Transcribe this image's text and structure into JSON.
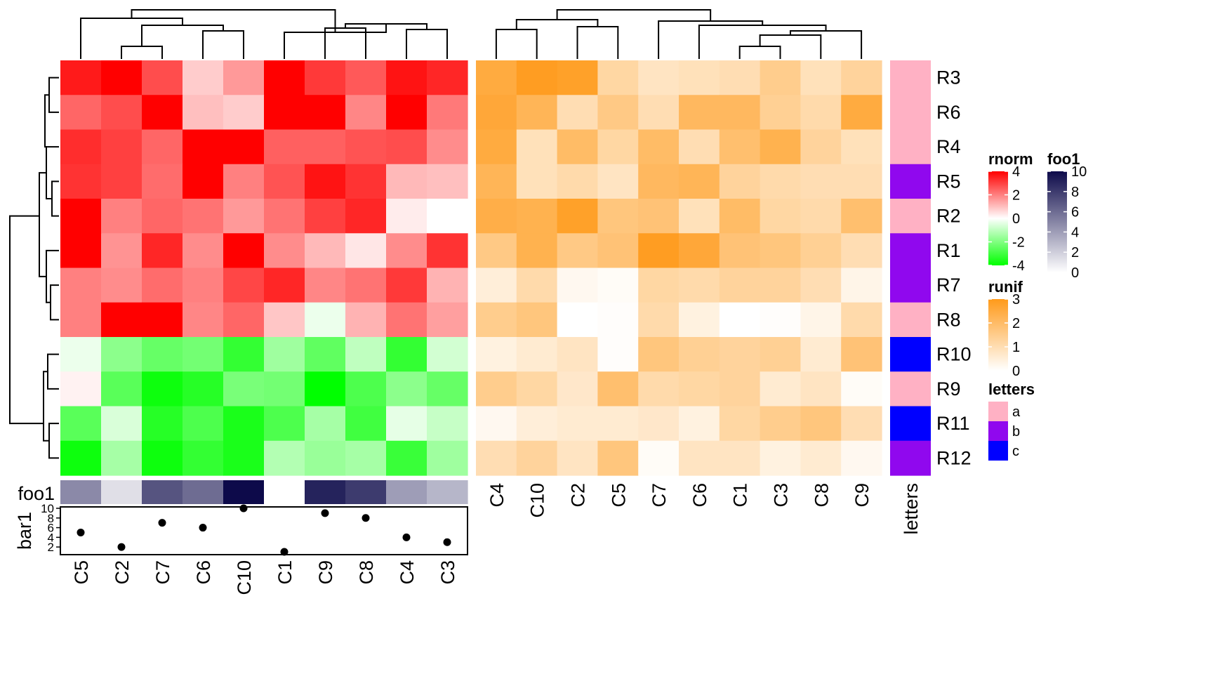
{
  "chart_data": {
    "type": "heatmap",
    "left_heatmap": {
      "name": "rnorm",
      "col_order": [
        "C5",
        "C2",
        "C7",
        "C6",
        "C10",
        "C1",
        "C9",
        "C8",
        "C4",
        "C3"
      ],
      "row_order": [
        "R3",
        "R6",
        "R4",
        "R5",
        "R2",
        "R1",
        "R7",
        "R8",
        "R10",
        "R9",
        "R11",
        "R12"
      ],
      "values": [
        [
          3.6,
          4.0,
          2.8,
          0.8,
          1.6,
          4.0,
          3.1,
          2.6,
          3.7,
          3.4
        ],
        [
          2.4,
          2.8,
          4.0,
          1.0,
          0.8,
          4.0,
          4.0,
          1.9,
          4.0,
          2.1
        ],
        [
          3.3,
          3.0,
          2.4,
          4.0,
          4.0,
          2.5,
          2.5,
          2.7,
          2.8,
          1.8
        ],
        [
          3.2,
          3.0,
          2.3,
          4.0,
          2.0,
          2.7,
          3.7,
          3.2,
          1.1,
          1.0
        ],
        [
          4.0,
          2.0,
          2.4,
          2.2,
          1.6,
          2.2,
          3.0,
          3.4,
          0.3,
          0.0
        ],
        [
          4.0,
          1.7,
          3.4,
          1.8,
          4.0,
          1.8,
          1.1,
          0.4,
          1.8,
          3.2
        ],
        [
          2.0,
          1.8,
          2.3,
          2.0,
          2.9,
          3.4,
          1.9,
          2.2,
          3.1,
          1.2
        ],
        [
          2.0,
          4.0,
          4.0,
          1.9,
          2.4,
          0.9,
          -0.3,
          1.2,
          2.2,
          1.5
        ],
        [
          -0.3,
          -1.8,
          -2.4,
          -2.2,
          -3.2,
          -1.5,
          -2.5,
          -1.0,
          -3.2,
          -0.7
        ],
        [
          0.2,
          -2.6,
          -3.8,
          -3.4,
          -2.1,
          -2.2,
          -4.0,
          -2.8,
          -1.8,
          -2.4
        ],
        [
          -2.6,
          -0.6,
          -3.4,
          -2.8,
          -3.6,
          -2.8,
          -1.4,
          -3.0,
          -0.4,
          -0.9
        ],
        [
          -3.8,
          -1.4,
          -3.8,
          -3.2,
          -3.6,
          -1.2,
          -1.6,
          -1.4,
          -3.1,
          -1.5
        ]
      ],
      "foo1": [
        4.8,
        1.3,
        7.0,
        6.0,
        10.0,
        0.0,
        9.0,
        8.0,
        4.0,
        3.0
      ],
      "bar1": {
        "name": "bar1",
        "ticks": [
          "10",
          "8",
          "6",
          "4",
          "2"
        ],
        "values": [
          5,
          2,
          7,
          6,
          10,
          1,
          9,
          8,
          4,
          3
        ],
        "ylim": [
          1,
          10
        ]
      }
    },
    "right_heatmap": {
      "name": "runif",
      "col_order": [
        "C4",
        "C10",
        "C2",
        "C5",
        "C7",
        "C6",
        "C1",
        "C3",
        "C8",
        "C9"
      ],
      "values": [
        [
          2.5,
          2.9,
          2.8,
          1.2,
          0.8,
          0.9,
          1.0,
          1.5,
          0.9,
          1.3
        ],
        [
          2.6,
          2.2,
          1.0,
          1.6,
          1.0,
          2.1,
          2.1,
          1.4,
          1.1,
          2.5
        ],
        [
          2.5,
          0.9,
          2.0,
          1.2,
          2.0,
          1.0,
          1.9,
          2.3,
          1.3,
          0.9
        ],
        [
          2.2,
          0.9,
          1.1,
          0.8,
          2.1,
          2.2,
          1.3,
          1.1,
          1.0,
          1.0
        ],
        [
          2.4,
          2.3,
          2.8,
          1.7,
          1.8,
          0.9,
          2.0,
          1.2,
          1.1,
          1.9
        ],
        [
          1.6,
          2.3,
          1.6,
          1.8,
          2.9,
          2.6,
          1.8,
          1.7,
          1.4,
          1.0
        ],
        [
          0.5,
          1.1,
          0.2,
          0.1,
          1.2,
          1.1,
          1.3,
          1.3,
          1.0,
          0.3
        ],
        [
          1.5,
          1.7,
          0.0,
          0.05,
          1.1,
          0.4,
          0.0,
          0.05,
          0.3,
          1.1
        ],
        [
          0.4,
          0.6,
          0.8,
          0.05,
          1.7,
          1.4,
          1.3,
          1.4,
          0.6,
          1.8
        ],
        [
          1.5,
          1.2,
          0.7,
          1.9,
          1.1,
          1.2,
          1.3,
          0.6,
          0.8,
          0.1
        ],
        [
          0.2,
          0.5,
          0.6,
          0.6,
          0.7,
          0.4,
          1.2,
          1.5,
          1.7,
          1.0
        ],
        [
          1.0,
          1.3,
          0.8,
          1.7,
          0.1,
          0.8,
          0.8,
          0.4,
          0.6,
          0.2
        ]
      ]
    },
    "letters": {
      "name": "letters",
      "values": [
        "a",
        "a",
        "a",
        "b",
        "a",
        "b",
        "b",
        "a",
        "c",
        "a",
        "c",
        "b"
      ]
    },
    "legends": {
      "rnorm": {
        "title": "rnorm",
        "ticks": [
          "4",
          "2",
          "0",
          "-2",
          "-4"
        ],
        "colors": [
          "#ff0000",
          "#ffffff",
          "#00ff00"
        ]
      },
      "runif": {
        "title": "runif",
        "ticks": [
          "3",
          "2",
          "1",
          "0"
        ],
        "colors": [
          "#ff9a1a",
          "#ffffff"
        ]
      },
      "foo1": {
        "title": "foo1",
        "ticks": [
          "10",
          "8",
          "6",
          "4",
          "2",
          "0"
        ],
        "colors": [
          "#0d0a4a",
          "#ffffff"
        ]
      },
      "letters": {
        "title": "letters",
        "items": [
          {
            "label": "a",
            "color": "#ffb1c4"
          },
          {
            "label": "b",
            "color": "#9008ee"
          },
          {
            "label": "c",
            "color": "#0000ff"
          }
        ]
      }
    },
    "labels": {
      "foo1_row": "foo1",
      "bar1_row": "bar1",
      "letters_col": "letters"
    }
  }
}
